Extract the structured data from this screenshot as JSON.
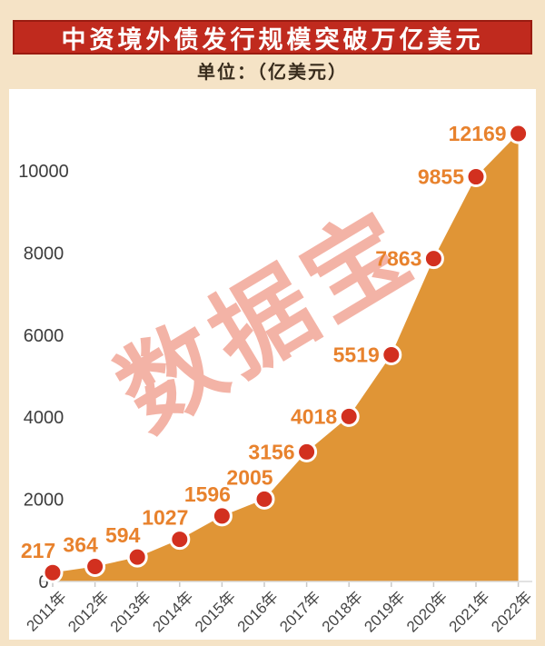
{
  "header": {
    "title": "中资境外债发行规模突破万亿美元",
    "subtitle": "单位：（亿美元）"
  },
  "watermark": {
    "text": "数据宝"
  },
  "colors": {
    "background": "#f5e3c6",
    "panel": "#ffffff",
    "title_bar": "#c02a1e",
    "title_bar_border": "#9a1c11",
    "title_text": "#ffffff",
    "subtitle_text": "#382c1d",
    "area_fill": "#e09536",
    "dot_fill": "#d2301f",
    "dot_ring": "#ffffff",
    "value_label": "#e8822d",
    "axis_line": "#d9d9d9",
    "tick": "#c9c9c9",
    "axis_label": "#454545",
    "watermark": "#f3b3a6"
  },
  "chart_data": {
    "type": "area",
    "title": "中资境外债发行规模突破万亿美元",
    "unit_label": "单位：（亿美元）",
    "categories": [
      "2011年",
      "2012年",
      "2013年",
      "2014年",
      "2015年",
      "2016年",
      "2017年",
      "2018年",
      "2019年",
      "2020年",
      "2021年",
      "2022年"
    ],
    "values": [
      217,
      364,
      594,
      1027,
      1596,
      2005,
      3156,
      4018,
      5519,
      7863,
      9855,
      12169
    ],
    "y_ticks": [
      0,
      2000,
      4000,
      6000,
      8000,
      10000
    ],
    "ylim": [
      0,
      12500
    ],
    "grid": false,
    "legend": "none",
    "watermark": "数据宝",
    "xlabel": "",
    "ylabel": ""
  }
}
